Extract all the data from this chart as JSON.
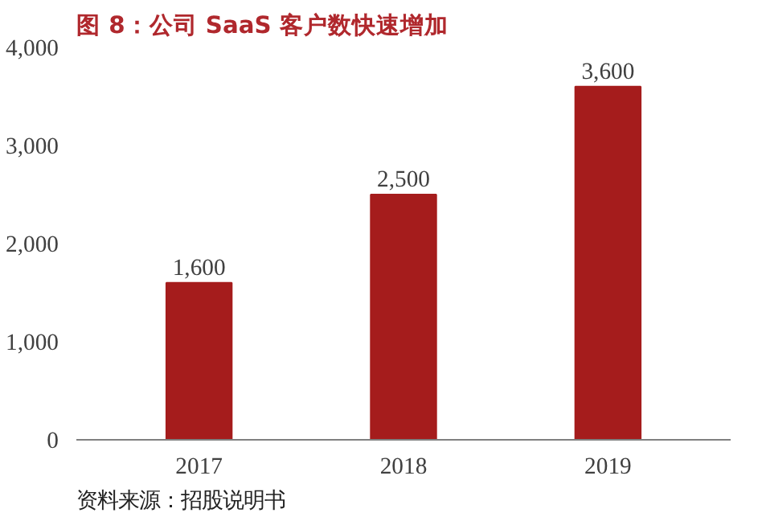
{
  "chart_data": {
    "type": "bar",
    "title": "图 8：公司 SaaS 客户数快速增加",
    "categories": [
      "2017",
      "2018",
      "2019"
    ],
    "values": [
      1600,
      2500,
      3600
    ],
    "value_labels": [
      "1,600",
      "2,500",
      "3,600"
    ],
    "color": "#a51c1c",
    "ylim": [
      0,
      4000
    ],
    "yticks": [
      {
        "value": 0,
        "label": "0"
      },
      {
        "value": 1000,
        "label": "1,000"
      },
      {
        "value": 2000,
        "label": "2,000"
      },
      {
        "value": 3000,
        "label": "3,000"
      },
      {
        "value": 4000,
        "label": "4,000"
      }
    ],
    "grid": false,
    "annotations": [
      "资料来源：招股说明书"
    ]
  }
}
